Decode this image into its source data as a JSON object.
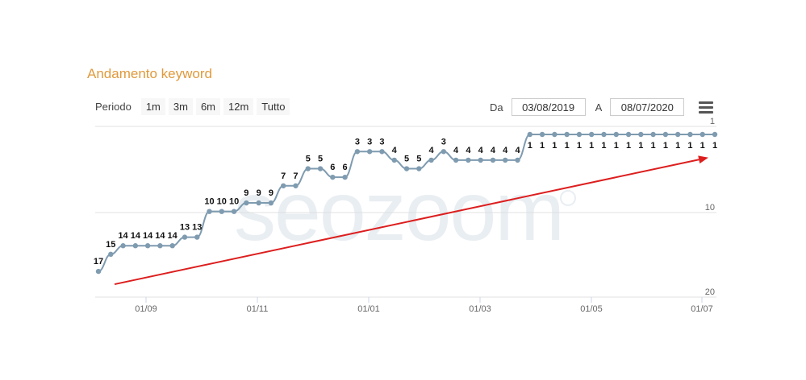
{
  "title": "Andamento keyword",
  "toolbar": {
    "period_label": "Periodo",
    "range_buttons": [
      "1m",
      "3m",
      "6m",
      "12m",
      "Tutto"
    ]
  },
  "range": {
    "from_label": "Da",
    "from_value": "03/08/2019",
    "to_label": "A",
    "to_value": "08/07/2020"
  },
  "watermark": "seozoom",
  "colors": {
    "title": "#e09a3c",
    "series": "#7f9bb0",
    "arrow": "#dd1e1e",
    "grid": "#e0e0e0"
  },
  "chart_data": {
    "type": "line",
    "x_tick_labels": [
      "01/09",
      "01/11",
      "01/01",
      "01/03",
      "01/05",
      "01/07"
    ],
    "y_tick_labels": [
      "1",
      "10",
      "20"
    ],
    "ylim": [
      1,
      20
    ],
    "y_reversed": true,
    "series": [
      {
        "values": [
          17,
          15,
          14,
          14,
          14,
          14,
          14,
          13,
          13,
          10,
          10,
          10,
          9,
          9,
          9,
          7,
          7,
          5,
          5,
          6,
          6,
          3,
          3,
          3,
          4,
          5,
          5,
          4,
          3,
          4,
          4,
          4,
          4,
          4,
          4,
          1,
          1,
          1,
          1,
          1,
          1,
          1,
          1,
          1,
          1,
          1,
          1,
          1,
          1,
          1,
          1
        ],
        "labels": [
          "17",
          "15",
          "14",
          "14",
          "14",
          "14",
          "14",
          "13",
          "13",
          "10",
          "10",
          "10",
          "9",
          "9",
          "9",
          "7",
          "7",
          "5",
          "5",
          "6",
          "6",
          "3",
          "3",
          "3",
          "4",
          "5",
          "5",
          "4",
          "3",
          "4",
          "4",
          "4",
          "4",
          "4",
          "4",
          "1",
          "1",
          "1",
          "1",
          "1",
          "1",
          "1",
          "1",
          "1",
          "1",
          "1",
          "1",
          "1",
          "1",
          "1",
          "1"
        ]
      }
    ],
    "trend_arrow": {
      "from_value": 18.5,
      "to_value": 3.7
    },
    "grid": true
  }
}
